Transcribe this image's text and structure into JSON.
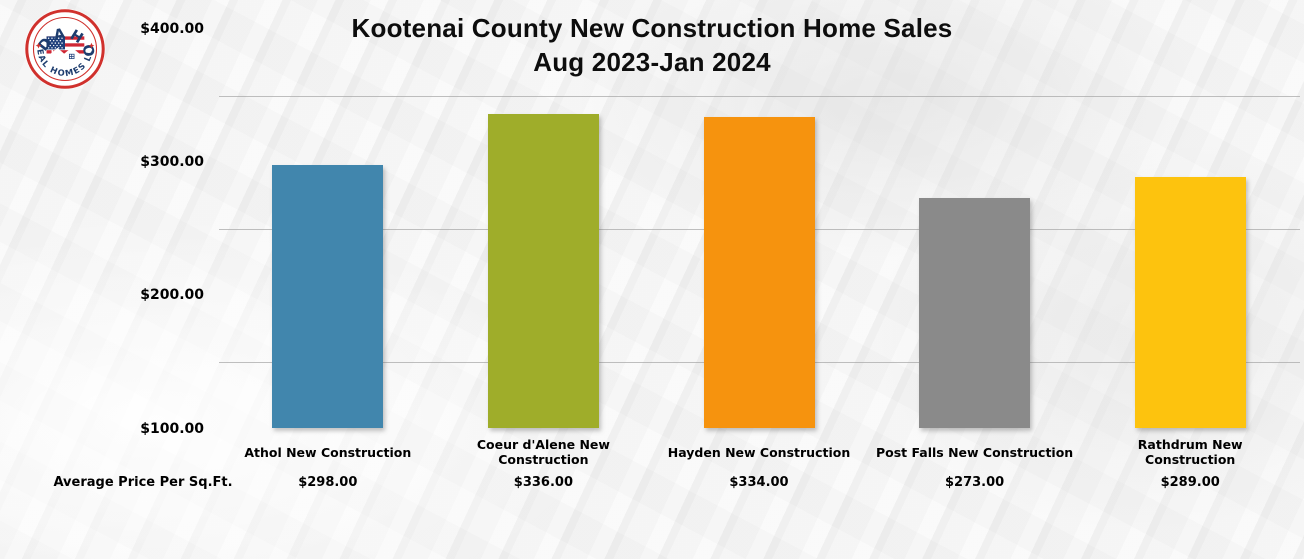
{
  "logo": {
    "top_text": "IDAHO",
    "bottom_text": "REAL HOMES LLC",
    "ring_color": "#d0312d",
    "text_color": "#1d3c6e",
    "flag_blue": "#1e3f7b",
    "flag_red": "#cf2734"
  },
  "title": {
    "line1": "Kootenai County New Construction Home Sales",
    "line2": "Aug 2023-Jan 2024"
  },
  "row_label": "Average Price Per Sq.Ft.",
  "chart_data": {
    "type": "bar",
    "title": "Kootenai County New Construction Home Sales",
    "subtitle": "Aug 2023-Jan 2024",
    "categories": [
      "Athol New Construction",
      "Coeur d'Alene New Construction",
      "Hayden New Construction",
      "Post Falls New Construction",
      "Rathdrum New Construction"
    ],
    "category_lines": [
      [
        "Athol New Construction"
      ],
      [
        "Coeur d'Alene New",
        "Construction"
      ],
      [
        "Hayden New Construction"
      ],
      [
        "Post Falls New Construction"
      ],
      [
        "Rathdrum New",
        "Construction"
      ]
    ],
    "values": [
      298,
      336,
      334,
      273,
      289
    ],
    "value_labels": [
      "$298.00",
      "$336.00",
      "$334.00",
      "$273.00",
      "$289.00"
    ],
    "row_label": "Average Price Per Sq.Ft.",
    "bar_colors": [
      "#4186ad",
      "#9fad2a",
      "#f6930e",
      "#8a8a8a",
      "#fdc30e"
    ],
    "ylim": [
      100,
      400
    ],
    "yticks": [
      400,
      300,
      200,
      100
    ],
    "ytick_labels": [
      "$400.00",
      "$300.00",
      "$200.00",
      "$100.00"
    ],
    "gridline_values": [
      350,
      250,
      150
    ],
    "grid": true,
    "legend": false,
    "xlabel": "",
    "ylabel": "Average Price Per Sq.Ft. ($)"
  }
}
